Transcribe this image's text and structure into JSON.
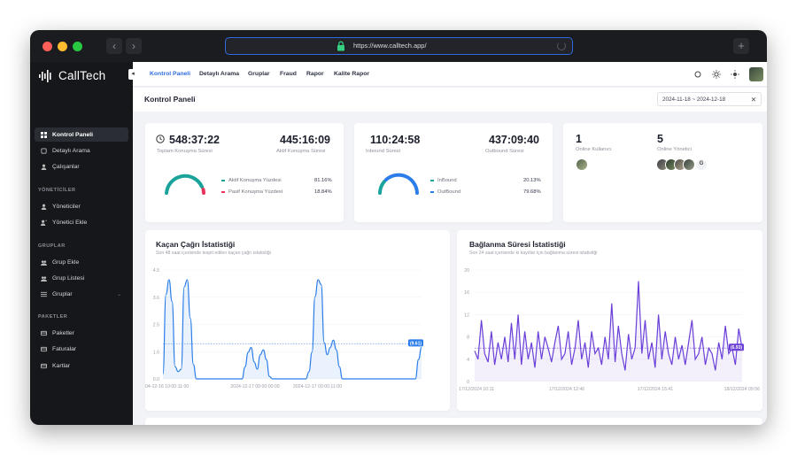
{
  "browser": {
    "url": "https://www.calltech.app/"
  },
  "sidebar": {
    "logo": "CallTech",
    "items": [
      {
        "label": "Kontrol Paneli",
        "active": true
      },
      {
        "label": "Detaylı Arama"
      },
      {
        "label": "Çalışanlar"
      }
    ],
    "sections": [
      {
        "label": "YÖNETİCİLER",
        "items": [
          {
            "label": "Yöneticiler"
          },
          {
            "label": "Yönetici Ekle"
          }
        ]
      },
      {
        "label": "GRUPLAR",
        "items": [
          {
            "label": "Grup Ekle"
          },
          {
            "label": "Grup Listesi"
          },
          {
            "label": "Gruplar"
          }
        ]
      },
      {
        "label": "PAKETLER",
        "items": [
          {
            "label": "Paketler"
          },
          {
            "label": "Faturalar"
          },
          {
            "label": "Kartlar"
          }
        ]
      }
    ]
  },
  "topnav": {
    "tabs": [
      "Kontrol Paneli",
      "Detaylı Arama",
      "Gruplar",
      "Fraud",
      "Rapor",
      "Kalite Rapor"
    ]
  },
  "header": {
    "title": "Kontrol Paneli",
    "date_range": "2024-11-18 ~ 2024-12-18"
  },
  "stats": {
    "card1": {
      "total_value": "548:37:22",
      "total_label": "Toplam Konuşma Süresi",
      "active_value": "445:16:09",
      "active_label": "Aktif Konuşma Süresi",
      "legend": [
        {
          "label": "Aktif Konuşma Yüzdesi",
          "value": "81.16%",
          "color": "#1aa39a"
        },
        {
          "label": "Pasif Konuşma Yüzdesi",
          "value": "18.84%",
          "color": "#e8345d"
        }
      ],
      "gauge_fraction": 0.8116
    },
    "card2": {
      "inbound_value": "110:24:58",
      "inbound_label": "Inbound Süresi",
      "outbound_value": "437:09:40",
      "outbound_label": "Outbound Süresi",
      "legend": [
        {
          "label": "InBound",
          "value": "20.13%",
          "color": "#1aa39a"
        },
        {
          "label": "OutBound",
          "value": "79.68%",
          "color": "#2b7de9"
        }
      ]
    },
    "card3": {
      "online_users_value": "1",
      "online_users_label": "Online Kullanıcı",
      "online_admins_value": "5",
      "online_admins_label": "Online Yönetici",
      "avatar_initial": "G"
    }
  },
  "chart1": {
    "title": "Kaçan Çağrı İstatistiği",
    "subtitle": "Son 48 saat içerisinde tespit edilen kaçan çağrı istatistiği",
    "badge": "(9.61)"
  },
  "chart2": {
    "title": "Bağlanma Süresi İstatistiği",
    "subtitle": "Son 24 saat içerisinde ki kayıtlar için bağlanma süresi istatistiği",
    "badge": "(6.93)"
  },
  "chart_data": [
    {
      "type": "area",
      "title": "Kaçan Çağrı İstatistiği",
      "y_ticks": [
        "4.5",
        "3.6",
        "2.5",
        "1.6",
        "0.0"
      ],
      "x_ticks": [
        "04-12-16 10:00:11:00",
        "2024-12-17 00:00:00:00",
        "2024-12-17 00:00:11:00"
      ],
      "ylim": [
        0,
        4.5
      ],
      "average": 1.45,
      "values": [
        0.2,
        3.5,
        4.1,
        3.2,
        0.5,
        0.3,
        0.4,
        3.8,
        4.1,
        2.5,
        0.6,
        0,
        0,
        0,
        0,
        0,
        0,
        0,
        0,
        0,
        0,
        0,
        0,
        0,
        0,
        0,
        0,
        0.5,
        1.1,
        1.3,
        0.7,
        0.4,
        1.0,
        1.2,
        0.8,
        0.1,
        0,
        0,
        0,
        0,
        0,
        0,
        0,
        0,
        0,
        0,
        0,
        0,
        0.3,
        1.1,
        3.4,
        4.1,
        3.9,
        1.5,
        1.0,
        1.3,
        1.6,
        1.2,
        0.5,
        0,
        0,
        0,
        0,
        0,
        0,
        0,
        0,
        0,
        0,
        0,
        0,
        0,
        0,
        0,
        0,
        0,
        0,
        0,
        0,
        0,
        0,
        0,
        0,
        0,
        0.8,
        1.3
      ]
    },
    {
      "type": "line",
      "title": "Bağlanma Süresi İstatistiği",
      "y_ticks": [
        "20",
        "16",
        "12",
        "8",
        "4",
        "0"
      ],
      "x_ticks": [
        "17/12/2024 10:11",
        "17/12/2024 12:46",
        "17/12/2024 15:41",
        "18/12/2024 09:56"
      ],
      "ylim": [
        0,
        20
      ],
      "average": 6,
      "values": [
        5.5,
        4,
        11,
        5,
        3.5,
        9,
        3,
        7,
        4,
        8,
        3.5,
        10.5,
        4,
        12,
        3,
        9,
        4,
        7,
        2.5,
        9,
        4,
        8,
        6,
        3.5,
        7,
        10,
        4,
        5,
        9,
        3,
        6,
        11,
        4,
        7,
        2.5,
        9,
        5,
        6,
        3,
        8,
        4,
        14,
        3.5,
        10,
        5,
        2,
        8.5,
        4,
        6,
        18,
        5,
        11,
        4,
        7,
        2.5,
        12,
        4,
        9,
        5,
        3,
        8,
        4,
        6.5,
        3,
        7,
        11,
        4,
        5,
        8,
        3,
        6,
        5,
        2,
        7,
        4,
        10,
        5,
        6,
        3,
        9.5,
        6
      ]
    }
  ]
}
